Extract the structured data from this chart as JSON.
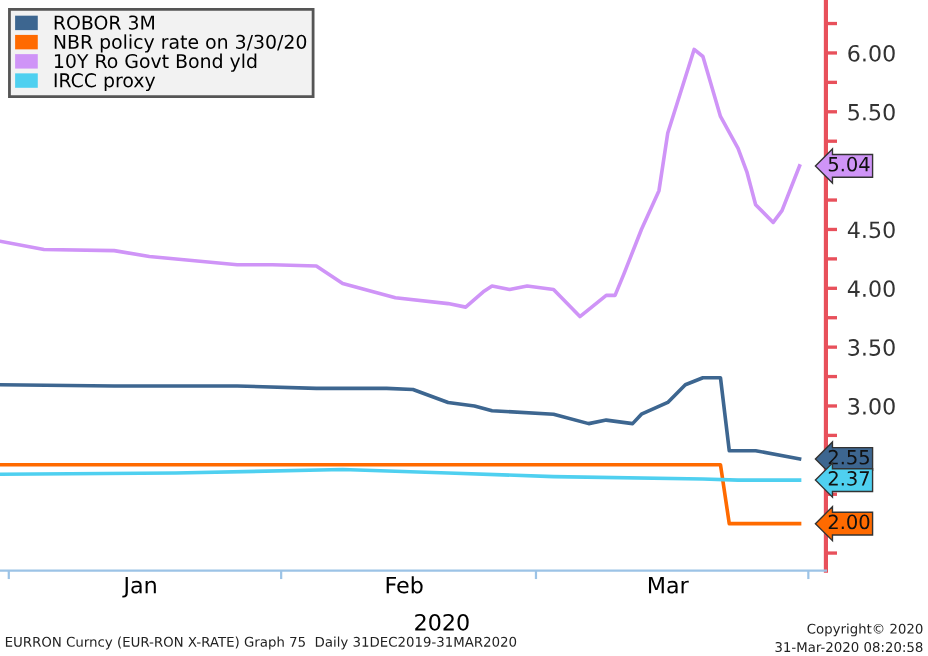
{
  "chart_data": {
    "type": "line",
    "xlabel": "2020",
    "annotations": [
      "EURRON Curncy (EUR-RON X-RATE) Graph 75  Daily 31DEC2019-31MAR2020",
      "Copyright© 2020",
      "31-Mar-2020 08:20:58"
    ],
    "series": [
      {
        "name": "ROBOR 3M",
        "color": "#3d6690",
        "x": [
          "2019-12-31",
          "2020-01-13",
          "2020-01-27",
          "2020-02-05",
          "2020-02-13",
          "2020-02-16",
          "2020-02-20",
          "2020-02-23",
          "2020-02-25",
          "2020-03-03",
          "2020-03-07",
          "2020-03-09",
          "2020-03-12",
          "2020-03-13",
          "2020-03-16",
          "2020-03-18",
          "2020-03-20",
          "2020-03-22",
          "2020-03-23",
          "2020-03-26",
          "2020-03-31"
        ],
        "values": [
          3.18,
          3.17,
          3.17,
          3.15,
          3.15,
          3.14,
          3.03,
          3.0,
          2.96,
          2.93,
          2.85,
          2.88,
          2.85,
          2.93,
          3.03,
          3.18,
          3.24,
          3.24,
          2.62,
          2.62,
          2.55
        ],
        "value_labels": [
          null,
          null,
          null,
          null,
          null,
          null,
          null,
          null,
          null,
          null,
          null,
          null,
          null,
          null,
          null,
          null,
          null,
          null,
          null,
          null,
          "2.55"
        ]
      },
      {
        "name": "NBR policy rate on 3/30/20",
        "color": "#ff6a00",
        "x": [
          "2019-12-31",
          "2020-03-22",
          "2020-03-23",
          "2020-03-31"
        ],
        "values": [
          2.5,
          2.5,
          2.0,
          2.0
        ],
        "value_labels": [
          null,
          null,
          null,
          "2.00"
        ]
      },
      {
        "name": "10Y Ro Govt Bond yld",
        "color": "#cf94f7",
        "x": [
          "2019-12-31",
          "2020-01-05",
          "2020-01-13",
          "2020-01-17",
          "2020-01-27",
          "2020-01-31",
          "2020-02-05",
          "2020-02-08",
          "2020-02-14",
          "2020-02-20",
          "2020-02-22",
          "2020-02-24",
          "2020-02-25",
          "2020-02-27",
          "2020-02-29",
          "2020-03-03",
          "2020-03-06",
          "2020-03-09",
          "2020-03-10",
          "2020-03-11",
          "2020-03-13",
          "2020-03-15",
          "2020-03-16",
          "2020-03-19",
          "2020-03-20",
          "2020-03-22",
          "2020-03-24",
          "2020-03-25",
          "2020-03-26",
          "2020-03-28",
          "2020-03-29",
          "2020-03-31"
        ],
        "values": [
          4.4,
          4.33,
          4.32,
          4.27,
          4.2,
          4.2,
          4.19,
          4.04,
          3.92,
          3.87,
          3.84,
          3.97,
          4.02,
          3.99,
          4.02,
          3.99,
          3.76,
          3.94,
          3.94,
          4.12,
          4.5,
          4.83,
          5.32,
          6.03,
          5.97,
          5.46,
          5.19,
          4.99,
          4.71,
          4.56,
          4.66,
          5.04
        ],
        "value_labels": [
          null,
          null,
          null,
          null,
          null,
          null,
          null,
          null,
          null,
          null,
          null,
          null,
          null,
          null,
          null,
          null,
          null,
          null,
          null,
          null,
          null,
          null,
          null,
          null,
          null,
          null,
          null,
          null,
          null,
          null,
          null,
          "5.04"
        ]
      },
      {
        "name": "IRCC proxy",
        "color": "#4fd0f0",
        "x": [
          "2019-12-31",
          "2020-01-20",
          "2020-02-08",
          "2020-02-20",
          "2020-03-03",
          "2020-03-20",
          "2020-03-24",
          "2020-03-31"
        ],
        "values": [
          2.42,
          2.43,
          2.46,
          2.43,
          2.4,
          2.38,
          2.37,
          2.37
        ],
        "value_labels": [
          null,
          null,
          null,
          null,
          null,
          null,
          null,
          "2.37"
        ]
      }
    ],
    "xlim": [
      "2019-12-31",
      "2020-04-03"
    ],
    "xticks": [
      {
        "value": "2020-01-01",
        "label": null
      },
      {
        "value": "2020-01-16",
        "label": "Jan"
      },
      {
        "value": "2020-02-01",
        "label": null
      },
      {
        "value": "2020-02-15",
        "label": "Feb"
      },
      {
        "value": "2020-03-01",
        "label": null
      },
      {
        "value": "2020-03-16",
        "label": "Mar"
      },
      {
        "value": "2020-04-01",
        "label": null
      }
    ],
    "ylim": [
      1.6,
      6.45
    ],
    "yticks": [
      {
        "value": 1.75,
        "label": null
      },
      {
        "value": 2.0,
        "label": null
      },
      {
        "value": 2.25,
        "label": null
      },
      {
        "value": 2.5,
        "label": null
      },
      {
        "value": 2.75,
        "label": null
      },
      {
        "value": 3.0,
        "label": "3.00"
      },
      {
        "value": 3.25,
        "label": null
      },
      {
        "value": 3.5,
        "label": "3.50"
      },
      {
        "value": 3.75,
        "label": null
      },
      {
        "value": 4.0,
        "label": "4.00"
      },
      {
        "value": 4.25,
        "label": null
      },
      {
        "value": 4.5,
        "label": "4.50"
      },
      {
        "value": 4.75,
        "label": null
      },
      {
        "value": 5.0,
        "label": null
      },
      {
        "value": 5.25,
        "label": null
      },
      {
        "value": 5.5,
        "label": "5.50"
      },
      {
        "value": 5.75,
        "label": null
      },
      {
        "value": 6.0,
        "label": "6.00"
      },
      {
        "value": 6.25,
        "label": null
      }
    ],
    "grid": false,
    "legend": "top left",
    "line_style": "solid",
    "marker": "none"
  }
}
